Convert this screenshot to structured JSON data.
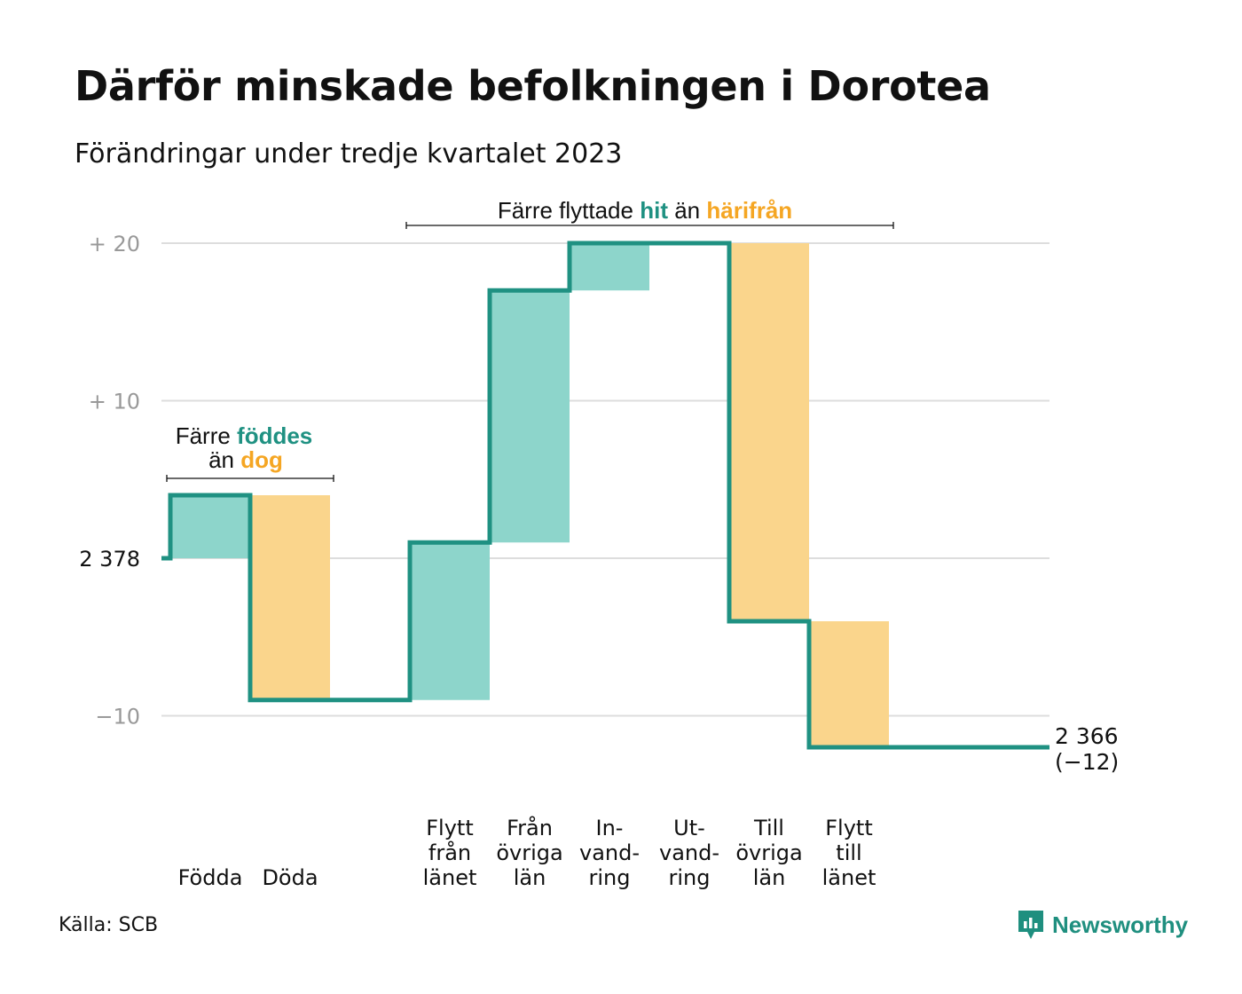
{
  "title": "Därför minskade befolkningen i Dorotea",
  "subtitle": "Förändringar under tredje kvartalet 2023",
  "source": "Källa: SCB",
  "brand": "Newsworthy",
  "colors": {
    "line": "#1f9182",
    "increase": "#8dd5cb",
    "decrease": "#fad58c",
    "grid": "#dddddd",
    "tick": "#999999",
    "teal_text": "#1f9182",
    "orange_text": "#f5a623"
  },
  "annotations": [
    {
      "segments": [
        {
          "text": "Färre ",
          "style": "normal"
        },
        {
          "text": "föddes",
          "style": "teal"
        }
      ]
    },
    {
      "segments": [
        {
          "text": "än ",
          "style": "normal"
        },
        {
          "text": "dog",
          "style": "orange"
        }
      ]
    },
    {
      "segments": [
        {
          "text": "Färre flyttade ",
          "style": "normal"
        },
        {
          "text": "hit",
          "style": "teal"
        },
        {
          "text": " än ",
          "style": "normal"
        },
        {
          "text": "härifrån",
          "style": "orange"
        }
      ]
    }
  ],
  "chart_data": {
    "type": "waterfall",
    "base_population": 2378,
    "end_population": 2366,
    "net_change": -12,
    "start_label": "2  378",
    "end_label": [
      "2 366",
      "(−12)"
    ],
    "y_ticks": [
      {
        "value": 20,
        "label": "+  20"
      },
      {
        "value": 10,
        "label": "+  10"
      },
      {
        "value": -10,
        "label": "−10"
      }
    ],
    "ylim": [
      -12,
      20
    ],
    "categories": [
      {
        "label": [
          "Födda"
        ],
        "change": 4
      },
      {
        "label": [
          "Döda"
        ],
        "change": -13
      },
      {
        "label": [],
        "change": 0
      },
      {
        "label": [
          "Flytt",
          "från",
          "länet"
        ],
        "change": 10
      },
      {
        "label": [
          "Från",
          "övriga",
          "län"
        ],
        "change": 16
      },
      {
        "label": [
          "In-",
          "vand-",
          "ring"
        ],
        "change": 3
      },
      {
        "label": [
          "Ut-",
          "vand-",
          "ring"
        ],
        "change": 0
      },
      {
        "label": [
          "Till",
          "övriga",
          "län"
        ],
        "change": -24
      },
      {
        "label": [
          "Flytt",
          "till",
          "länet"
        ],
        "change": -8
      },
      {
        "label": [],
        "change": 0
      }
    ]
  }
}
